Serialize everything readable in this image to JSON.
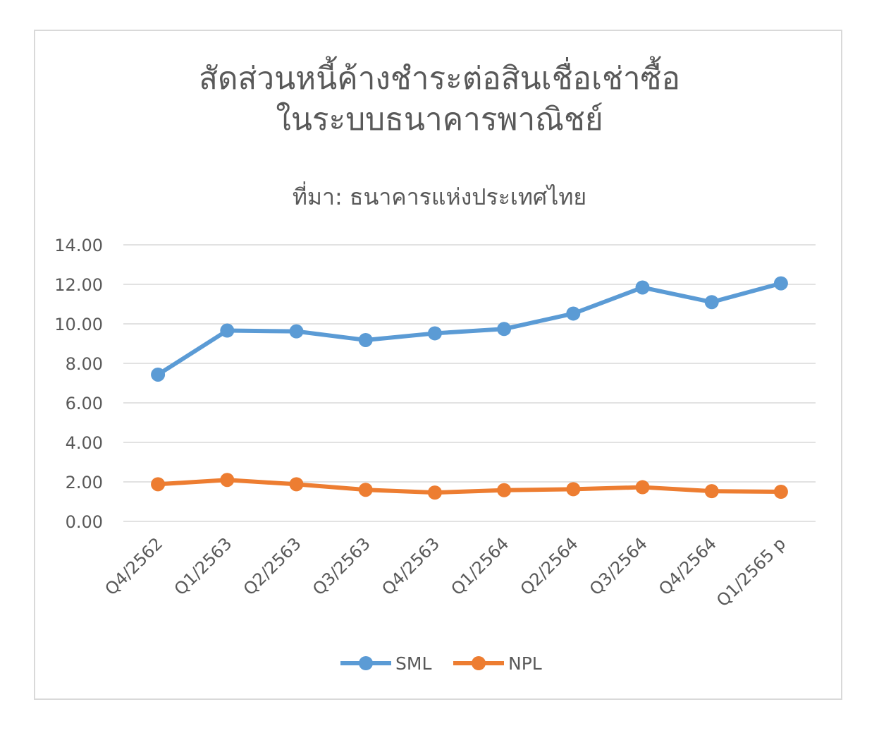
{
  "chart_data": {
    "type": "line",
    "title_lines": [
      "สัดส่วนหนี้ค้างชำระต่อสินเชื่อเช่าซื้อ",
      "ในระบบธนาคารพาณิชย์"
    ],
    "subtitle": "ที่มา: ธนาคารแห่งประเทศไทย",
    "categories": [
      "Q4/2562",
      "Q1/2563",
      "Q2/2563",
      "Q3/2563",
      "Q4/2563",
      "Q1/2564",
      "Q2/2564",
      "Q3/2564",
      "Q4/2564",
      "Q1/2565 p"
    ],
    "y_ticks": [
      "0.00",
      "2.00",
      "4.00",
      "6.00",
      "8.00",
      "10.00",
      "12.00",
      "14.00"
    ],
    "ylim": [
      0,
      14
    ],
    "grid": true,
    "legend_position": "bottom",
    "series": [
      {
        "name": "SML",
        "color": "#5b9bd5",
        "values": [
          7.43,
          9.66,
          9.62,
          9.18,
          9.52,
          9.74,
          10.52,
          11.84,
          11.1,
          12.05
        ]
      },
      {
        "name": "NPL",
        "color": "#ed7d31",
        "values": [
          1.88,
          2.1,
          1.88,
          1.6,
          1.46,
          1.58,
          1.63,
          1.73,
          1.53,
          1.5
        ]
      }
    ]
  }
}
